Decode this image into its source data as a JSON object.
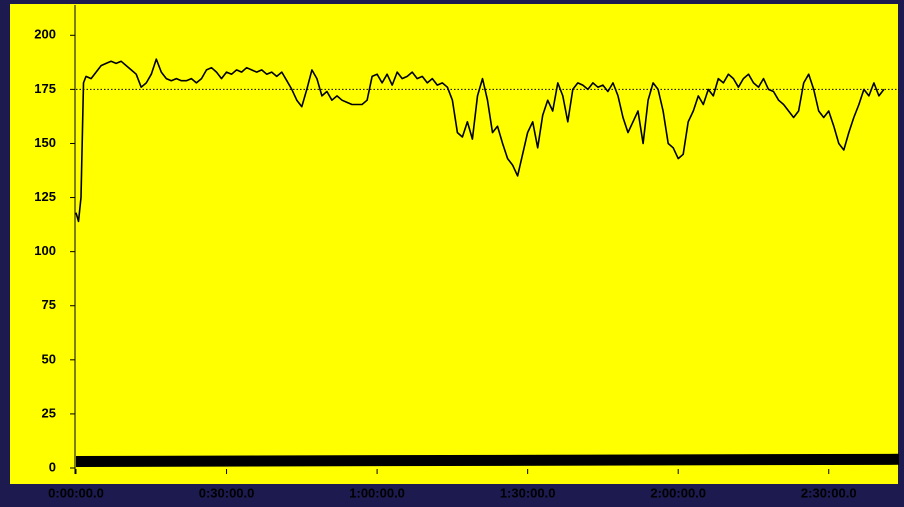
{
  "chart_data": {
    "type": "line",
    "background": "#ffff00",
    "xlim": [
      0,
      164
    ],
    "ylim": [
      0,
      214
    ],
    "xticks": [
      {
        "value": 0,
        "label": "0:00:00.0"
      },
      {
        "value": 30,
        "label": "0:30:00.0"
      },
      {
        "value": 60,
        "label": "1:00:00.0"
      },
      {
        "value": 90,
        "label": "1:30:00.0"
      },
      {
        "value": 120,
        "label": "2:00:00.0"
      },
      {
        "value": 150,
        "label": "2:30:00.0"
      }
    ],
    "yticks": [
      0,
      25,
      50,
      75,
      100,
      125,
      150,
      175,
      200
    ],
    "reference_line": 175,
    "series": [
      {
        "color": "#000000",
        "width": 1.6,
        "x": [
          0,
          0.5,
          1,
          1.5,
          2,
          3,
          4,
          5,
          6,
          7,
          8,
          9,
          10,
          11,
          12,
          13,
          14,
          15,
          16,
          17,
          18,
          19,
          20,
          21,
          22,
          23,
          24,
          25,
          26,
          27,
          28,
          29,
          30,
          31,
          32,
          33,
          34,
          35,
          36,
          37,
          38,
          39,
          40,
          41,
          42,
          43,
          44,
          45,
          46,
          47,
          48,
          49,
          50,
          51,
          52,
          53,
          54,
          55,
          56,
          57,
          58,
          59,
          60,
          61,
          62,
          63,
          64,
          65,
          66,
          67,
          68,
          69,
          70,
          71,
          72,
          73,
          74,
          75,
          76,
          77,
          78,
          79,
          80,
          81,
          82,
          83,
          84,
          85,
          86,
          87,
          88,
          89,
          90,
          91,
          92,
          93,
          94,
          95,
          96,
          97,
          98,
          99,
          100,
          101,
          102,
          103,
          104,
          105,
          106,
          107,
          108,
          109,
          110,
          111,
          112,
          113,
          114,
          115,
          116,
          117,
          118,
          119,
          120,
          121,
          122,
          123,
          124,
          125,
          126,
          127,
          128,
          129,
          130,
          131,
          132,
          133,
          134,
          135,
          136,
          137,
          138,
          139,
          140,
          141,
          142,
          143,
          144,
          145,
          146,
          147,
          148,
          149,
          150,
          151,
          152,
          153,
          154,
          155,
          156,
          157,
          158,
          159,
          160,
          161
        ],
        "values": [
          118,
          114,
          125,
          178,
          181,
          180,
          183,
          186,
          187,
          188,
          187,
          188,
          186,
          184,
          182,
          176,
          178,
          182,
          189,
          183,
          180,
          179,
          180,
          179,
          179,
          180,
          178,
          180,
          184,
          185,
          183,
          180,
          183,
          182,
          184,
          183,
          185,
          184,
          183,
          184,
          182,
          183,
          181,
          183,
          179,
          175,
          170,
          167,
          175,
          184,
          180,
          172,
          174,
          170,
          172,
          170,
          169,
          168,
          168,
          168,
          170,
          181,
          182,
          178,
          182,
          177,
          183,
          180,
          181,
          183,
          180,
          181,
          178,
          180,
          177,
          178,
          176,
          170,
          155,
          153,
          160,
          152,
          172,
          180,
          170,
          155,
          158,
          150,
          143,
          140,
          135,
          145,
          155,
          160,
          148,
          163,
          170,
          165,
          178,
          172,
          160,
          175,
          178,
          177,
          175,
          178,
          176,
          177,
          174,
          178,
          172,
          162,
          155,
          160,
          165,
          150,
          170,
          178,
          175,
          165,
          150,
          148,
          143,
          145,
          160,
          165,
          172,
          168,
          175,
          172,
          180,
          178,
          182,
          180,
          176,
          180,
          182,
          178,
          176,
          180,
          175,
          174,
          170,
          168,
          165,
          162,
          165,
          178,
          182,
          175,
          165,
          162,
          165,
          158,
          150,
          147,
          155,
          162,
          168,
          175,
          172,
          178,
          172,
          175
        ]
      },
      {
        "color": "#000000",
        "width": 11,
        "x": [
          0,
          164
        ],
        "values": [
          3,
          4
        ]
      }
    ]
  }
}
